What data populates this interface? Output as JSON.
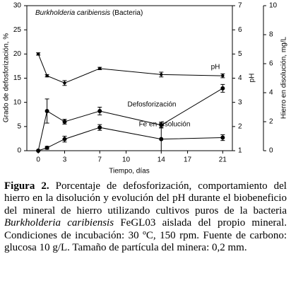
{
  "chart_data": {
    "type": "line",
    "annotation_species": "Burkholderia caribiensis",
    "annotation_rest": "(Bacteria)",
    "x_label": "Tiempo, días",
    "y_label": "Grado de defosforización, %",
    "y2_label": "pH",
    "y3_label": "Hierro en disolución, mg/L",
    "x": [
      0,
      1,
      3,
      7,
      14,
      21
    ],
    "xlim": [
      -1.3,
      22.1
    ],
    "xticks": [
      0,
      3,
      7,
      10,
      14,
      17,
      21
    ],
    "ylim": [
      0,
      30
    ],
    "yticks": [
      0,
      5,
      10,
      15,
      20,
      25,
      30
    ],
    "y2lim": [
      1,
      7
    ],
    "y2ticks": [
      1,
      2,
      3,
      4,
      5,
      6,
      7
    ],
    "y3lim": [
      0,
      10
    ],
    "y3ticks": [
      0,
      2,
      4,
      6,
      8,
      10
    ],
    "series": [
      {
        "name": "pH",
        "axis": "y2",
        "color": "#000000",
        "values": [
          5.0,
          4.1,
          3.8,
          4.4,
          4.15,
          4.1
        ],
        "errors": [
          0.05,
          0.05,
          0.1,
          0.05,
          0.1,
          0.08
        ]
      },
      {
        "name": "Defosforización",
        "axis": "y",
        "color": "#000000",
        "values": [
          0,
          8.2,
          6.0,
          8.2,
          5.3,
          12.9
        ],
        "errors": [
          0,
          2.5,
          0.5,
          0.8,
          0.6,
          0.8
        ]
      },
      {
        "name": "Fe en disolución",
        "axis": "y3",
        "color": "#000000",
        "values": [
          0,
          0.2,
          0.8,
          1.6,
          0.8,
          0.9
        ],
        "errors": [
          0,
          0.1,
          0.2,
          0.2,
          0.8,
          0.2
        ]
      }
    ]
  },
  "caption": {
    "label": "Figura 2.",
    "text_1": "Porcentaje de defosforización, comportamiento del hierro en la disolución y evolución del pH durante el biobeneficio del mineral de hierro utilizando cultivos puros de la bacteria",
    "species": "Burkholderia caribiensis",
    "text_2": "FeGL03 aislada del propio mineral. Condiciones de incubación: 30 ºC, 150 rpm. Fuente de carbono: glucosa 10 g/L. Tamaño de partícula del minera: 0,2 mm."
  }
}
